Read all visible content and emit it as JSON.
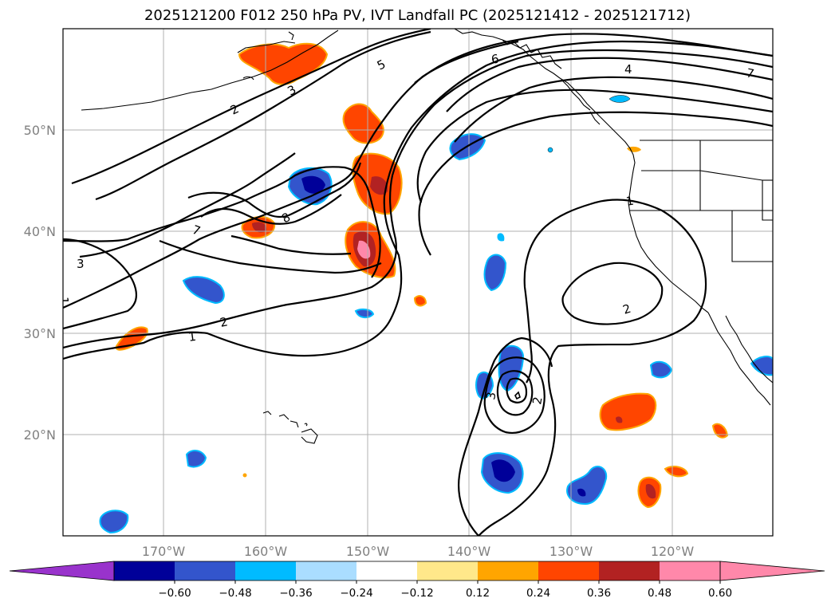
{
  "title": "2025121200 F012 250 hPa PV, IVT Landfall PC (2025121412 - 2025121712)",
  "axes": {
    "lon_ticks": [
      "170°W",
      "160°W",
      "150°W",
      "140°W",
      "130°W",
      "120°W"
    ],
    "lat_ticks": [
      "50°N",
      "40°N",
      "30°N",
      "20°N"
    ]
  },
  "contour_labels": [
    "1",
    "2",
    "3",
    "5",
    "6",
    "7",
    "8",
    "7",
    "3",
    "4",
    "1",
    "2",
    "1",
    "2",
    "3",
    "2"
  ],
  "colorbar": {
    "ticks": [
      "−0.60",
      "−0.48",
      "−0.36",
      "−0.24",
      "−0.12",
      "0.12",
      "0.24",
      "0.36",
      "0.48",
      "0.60"
    ],
    "colors": [
      "#9933cc",
      "#000099",
      "#3355cc",
      "#00bbff",
      "#aaddff",
      "#ffffff",
      "#ffe88a",
      "#ffa500",
      "#ff4500",
      "#b22222",
      "#ff88aa",
      "#ff88aa"
    ]
  },
  "colors": {
    "coast": "#000000",
    "grid": "#b0b0b0",
    "contour": "#000000"
  }
}
